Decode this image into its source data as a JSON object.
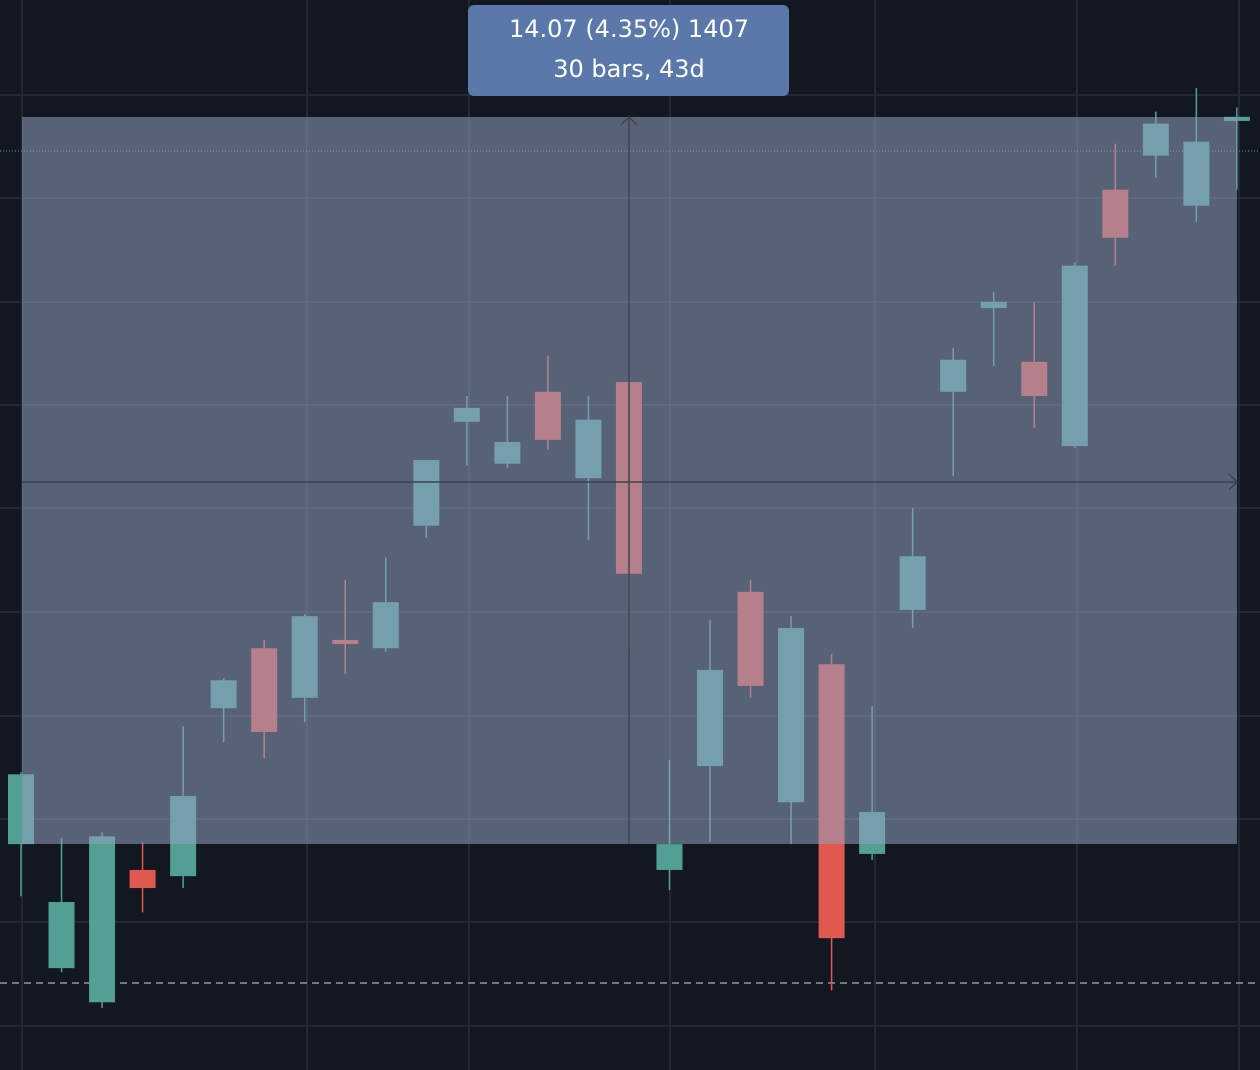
{
  "chart_data": {
    "type": "candlestick",
    "annotations": [
      "14.07 (4.35%) 1407",
      "30 bars, 43d"
    ],
    "up_color": "#529f94",
    "down_color": "#e0594f",
    "ylim": [
      319.08,
      339.78
    ],
    "open": [
      323.45,
      321.05,
      320.39,
      322.95,
      322.83,
      326.08,
      327.24,
      326.28,
      327.4,
      327.24,
      329.61,
      331.62,
      330.81,
      332.2,
      330.53,
      332.39,
      322.95,
      324.96,
      328.33,
      324.26,
      326.93,
      323.26,
      327.98,
      332.2,
      333.82,
      332.78,
      331.15,
      336.11,
      336.77,
      335.8,
      337.44
    ],
    "high": [
      324.84,
      323.57,
      323.68,
      323.49,
      325.73,
      326.66,
      327.4,
      327.9,
      328.56,
      328.99,
      330.88,
      332.12,
      332.12,
      332.9,
      332.12,
      332.47,
      325.08,
      327.79,
      328.56,
      327.86,
      327.13,
      326.12,
      329.95,
      333.05,
      334.13,
      333.94,
      334.71,
      337.0,
      337.62,
      338.08,
      337.7
    ],
    "low": [
      322.44,
      320.97,
      320.28,
      322.13,
      322.6,
      325.42,
      325.11,
      325.81,
      326.74,
      327.17,
      329.37,
      330.77,
      330.73,
      331.08,
      329.33,
      327.24,
      322.56,
      323.49,
      326.28,
      323.45,
      320.62,
      323.14,
      327.63,
      330.57,
      332.7,
      331.5,
      331.11,
      334.64,
      336.34,
      335.49,
      336.11
    ],
    "close": [
      324.8,
      322.33,
      323.6,
      322.6,
      324.38,
      326.62,
      325.62,
      327.86,
      327.32,
      328.13,
      330.88,
      331.89,
      331.23,
      331.27,
      331.66,
      328.68,
      323.45,
      326.82,
      326.51,
      327.63,
      321.63,
      324.07,
      329.02,
      332.82,
      333.94,
      332.12,
      334.64,
      335.18,
      337.39,
      337.04,
      337.52
    ]
  }
}
